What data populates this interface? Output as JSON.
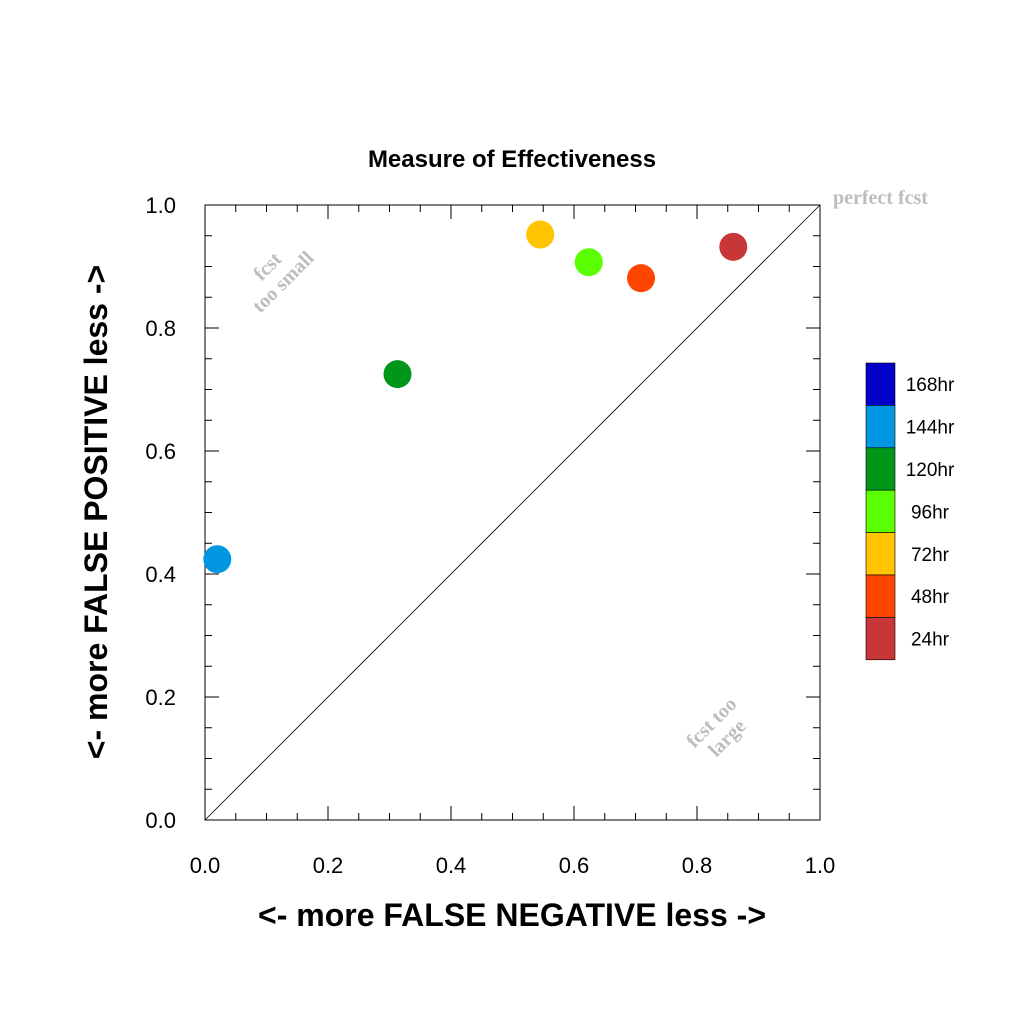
{
  "chart_data": {
    "type": "scatter",
    "title": "Measure of Effectiveness",
    "xlabel": "<- more   FALSE NEGATIVE   less ->",
    "ylabel": "<- more   FALSE POSITIVE   less ->",
    "xlim": [
      0,
      1
    ],
    "ylim": [
      0,
      1
    ],
    "xticks": [
      "0.0",
      "0.2",
      "0.4",
      "0.6",
      "0.8",
      "1.0"
    ],
    "yticks": [
      "0.0",
      "0.2",
      "0.4",
      "0.6",
      "0.8",
      "1.0"
    ],
    "grid": false,
    "reference_line": {
      "from": [
        0,
        0
      ],
      "to": [
        1,
        1
      ]
    },
    "annotations": {
      "top_left": [
        "fcst",
        "too small"
      ],
      "bottom_right": [
        "fcst too",
        "large"
      ],
      "corner": "perfect fcst"
    },
    "legend": {
      "placement": "right",
      "entries": [
        {
          "label": "168hr",
          "color": "#0000c8"
        },
        {
          "label": "144hr",
          "color": "#0096e1"
        },
        {
          "label": "120hr",
          "color": "#009619"
        },
        {
          "label": "96hr",
          "color": "#5aff00"
        },
        {
          "label": "72hr",
          "color": "#ffc300"
        },
        {
          "label": "48hr",
          "color": "#ff4600"
        },
        {
          "label": "24hr",
          "color": "#c83737"
        }
      ]
    },
    "points": [
      {
        "label": "144hr",
        "x": 0.02,
        "y": 0.424,
        "color": "#0096e1"
      },
      {
        "label": "120hr",
        "x": 0.313,
        "y": 0.725,
        "color": "#009619"
      },
      {
        "label": "72hr",
        "x": 0.545,
        "y": 0.952,
        "color": "#ffc300"
      },
      {
        "label": "96hr",
        "x": 0.624,
        "y": 0.907,
        "color": "#5aff00"
      },
      {
        "label": "48hr",
        "x": 0.709,
        "y": 0.881,
        "color": "#ff4600"
      },
      {
        "label": "24hr",
        "x": 0.859,
        "y": 0.932,
        "color": "#c83737"
      }
    ]
  }
}
